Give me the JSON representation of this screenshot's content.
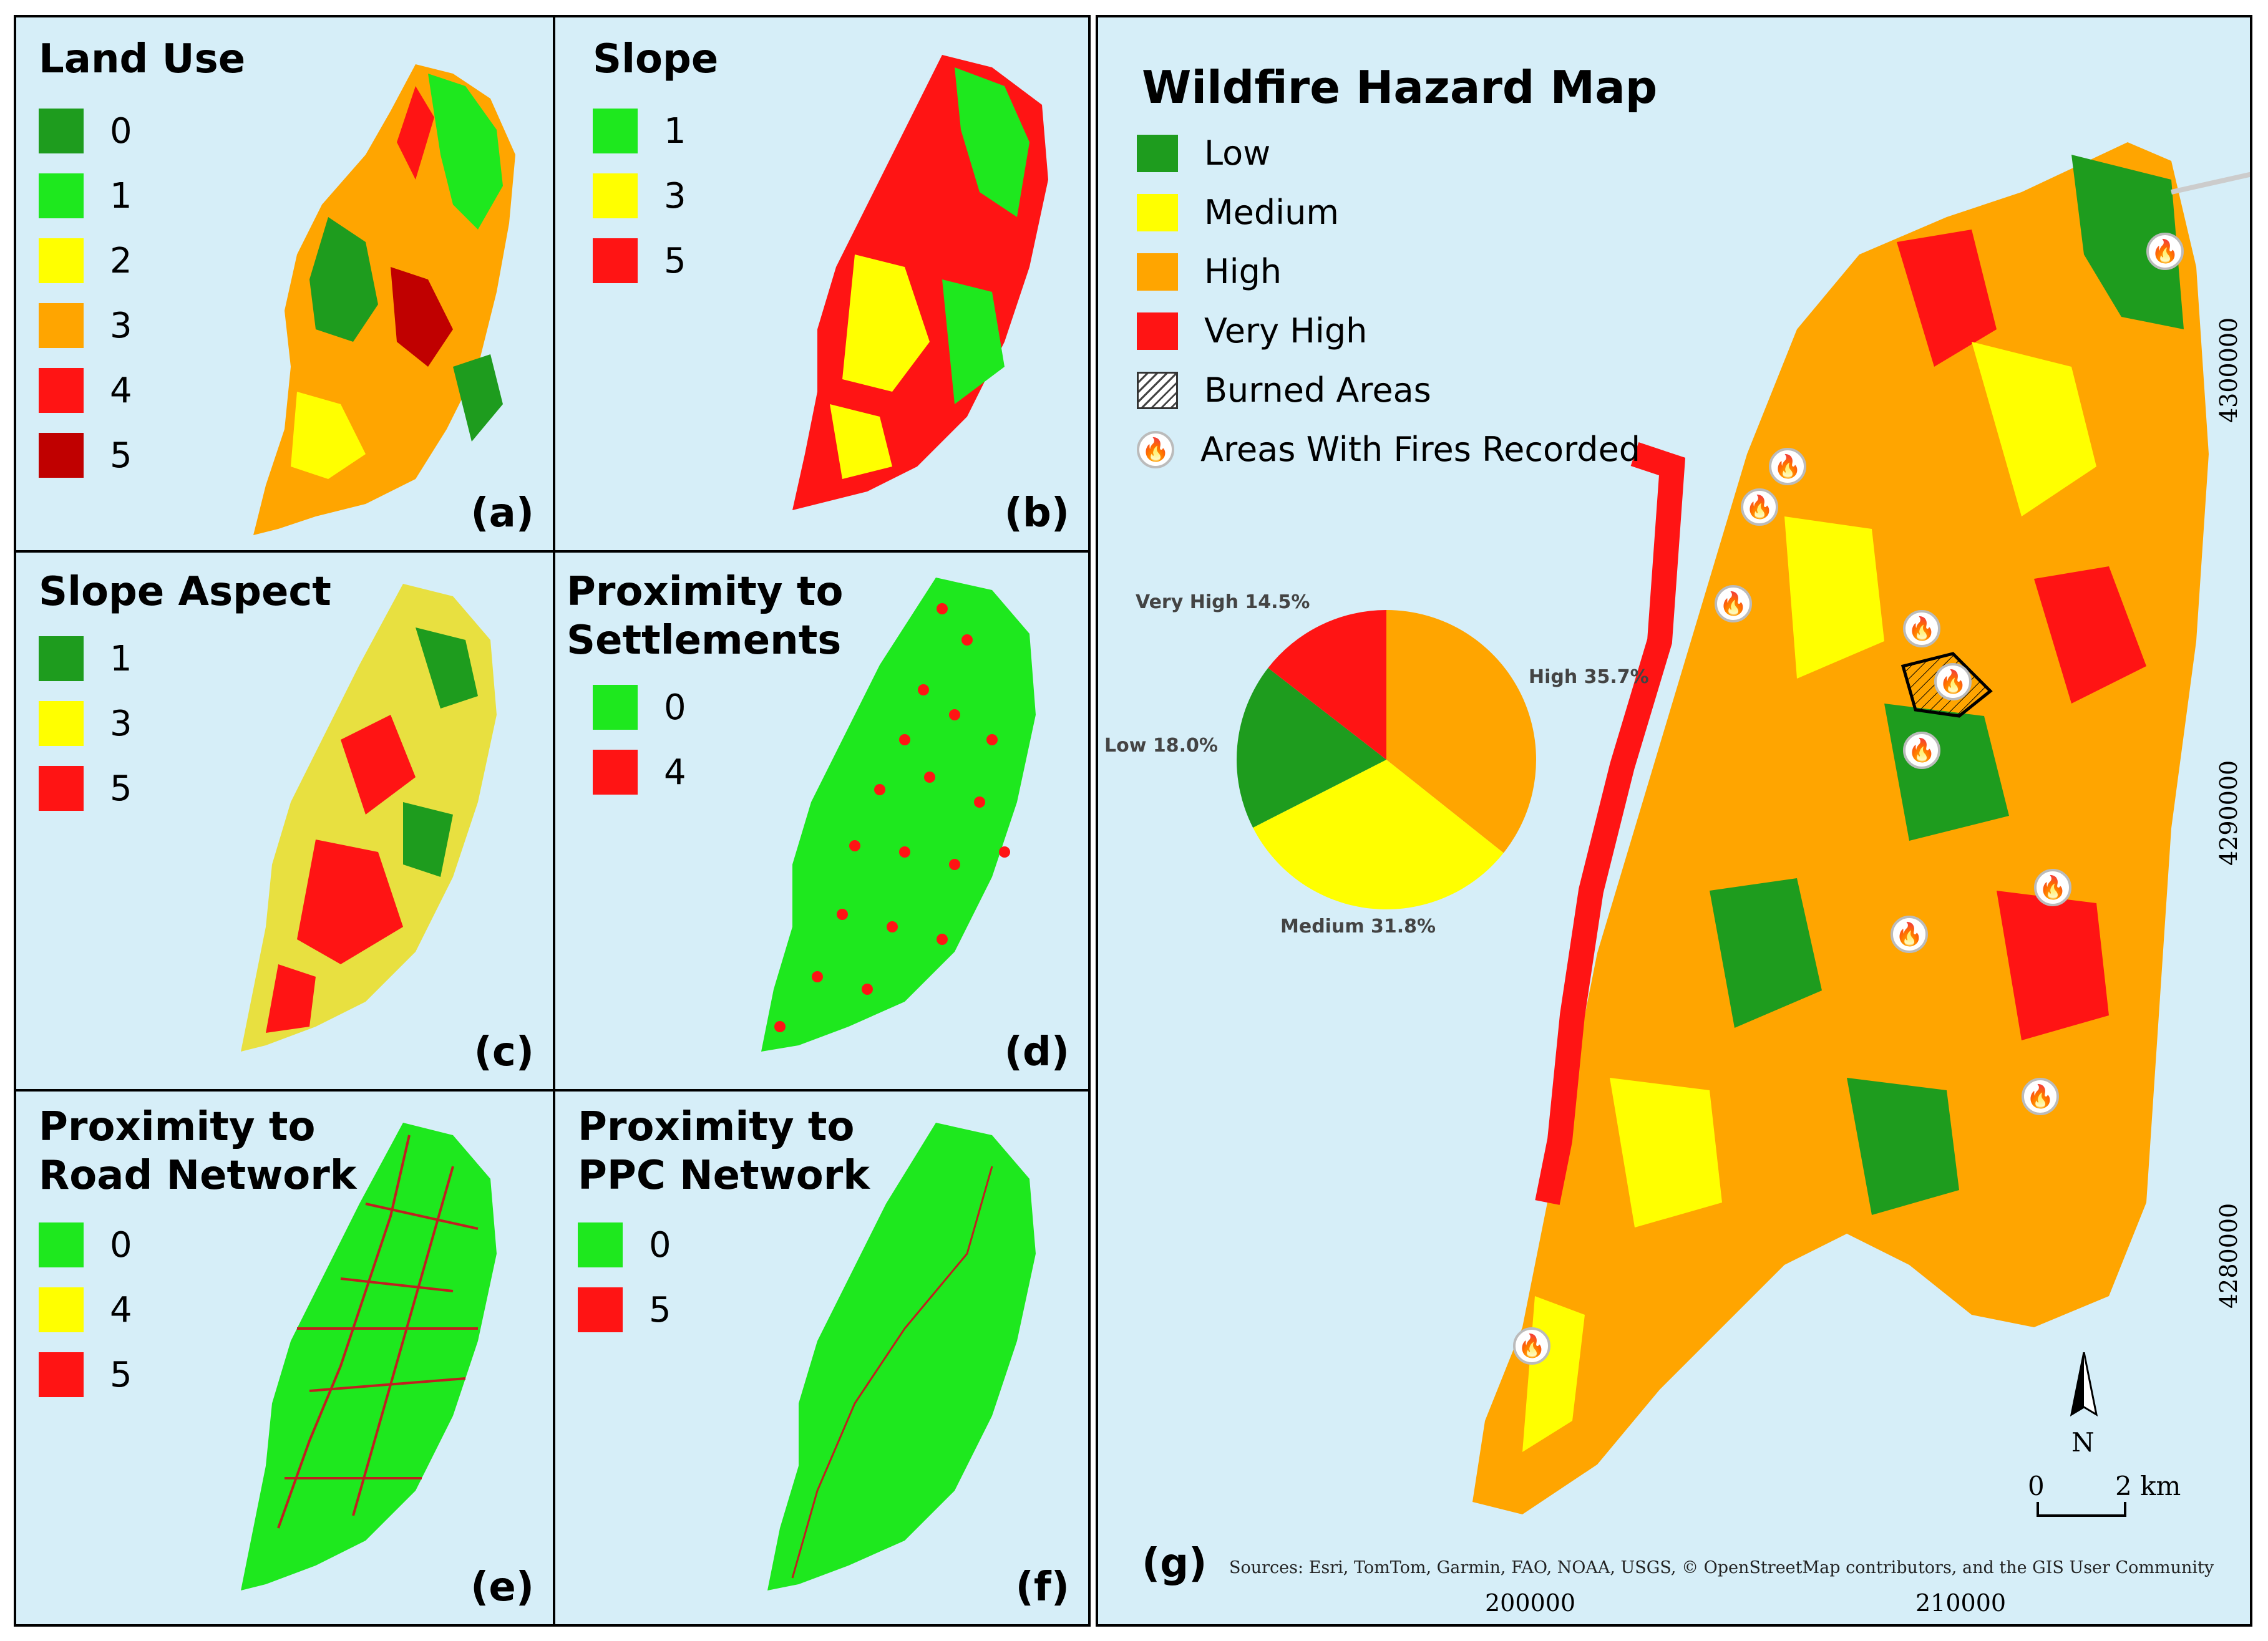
{
  "panels": [
    {
      "id": "a",
      "title": "Land Use",
      "label": "(a)",
      "legend": [
        {
          "value": "0",
          "color": "#1e9c1e"
        },
        {
          "value": "1",
          "color": "#1ee81e"
        },
        {
          "value": "2",
          "color": "#ffff00"
        },
        {
          "value": "3",
          "color": "#ffa500"
        },
        {
          "value": "4",
          "color": "#ff1414"
        },
        {
          "value": "5",
          "color": "#c00000"
        }
      ]
    },
    {
      "id": "b",
      "title": "Slope",
      "label": "(b)",
      "legend": [
        {
          "value": "1",
          "color": "#1ee81e"
        },
        {
          "value": "3",
          "color": "#ffff00"
        },
        {
          "value": "5",
          "color": "#ff1414"
        }
      ]
    },
    {
      "id": "c",
      "title": "Slope Aspect",
      "label": "(c)",
      "legend": [
        {
          "value": "1",
          "color": "#1e9c1e"
        },
        {
          "value": "3",
          "color": "#ffff00"
        },
        {
          "value": "5",
          "color": "#ff1414"
        }
      ]
    },
    {
      "id": "d",
      "title": "Proximity to\nSettlements",
      "label": "(d)",
      "legend": [
        {
          "value": "0",
          "color": "#1ee81e"
        },
        {
          "value": "4",
          "color": "#ff1414"
        }
      ]
    },
    {
      "id": "e",
      "title": "Proximity to\nRoad Network",
      "label": "(e)",
      "legend": [
        {
          "value": "0",
          "color": "#1ee81e"
        },
        {
          "value": "4",
          "color": "#ffff00"
        },
        {
          "value": "5",
          "color": "#ff1414"
        }
      ]
    },
    {
      "id": "f",
      "title": "Proximity to\nPPC Network",
      "label": "(f)",
      "legend": [
        {
          "value": "0",
          "color": "#1ee81e"
        },
        {
          "value": "5",
          "color": "#ff1414"
        }
      ]
    }
  ],
  "main": {
    "title": "Wildfire Hazard Map",
    "label": "(g)",
    "legend": [
      {
        "text": "Low",
        "color": "#1e9c1e"
      },
      {
        "text": "Medium",
        "color": "#ffff00"
      },
      {
        "text": "High",
        "color": "#ffa500"
      },
      {
        "text": "Very High",
        "color": "#ff1414"
      },
      {
        "text": "Burned Areas",
        "type": "hatch"
      },
      {
        "text": "Areas With Fires Recorded",
        "type": "fire-icon"
      }
    ],
    "sources": "Sources: Esri, TomTom, Garmin, FAO, NOAA, USGS, © OpenStreetMap contributors, and the GIS User Community",
    "x_ticks": [
      "200000",
      "210000"
    ],
    "y_ticks": [
      "4300000",
      "4290000",
      "4280000"
    ],
    "scale": {
      "start": "0",
      "end": "2 km"
    },
    "north": "N"
  },
  "chart_data": {
    "type": "pie",
    "categories": [
      "High",
      "Medium",
      "Low",
      "Very High"
    ],
    "values": [
      35.7,
      31.8,
      18.0,
      14.5
    ],
    "colors": [
      "#ffa500",
      "#ffff00",
      "#1e9c1e",
      "#ff1414"
    ],
    "labels": [
      "High 35.7%",
      "Medium 31.8%",
      "Low 18.0%",
      "Very High 14.5%"
    ]
  }
}
